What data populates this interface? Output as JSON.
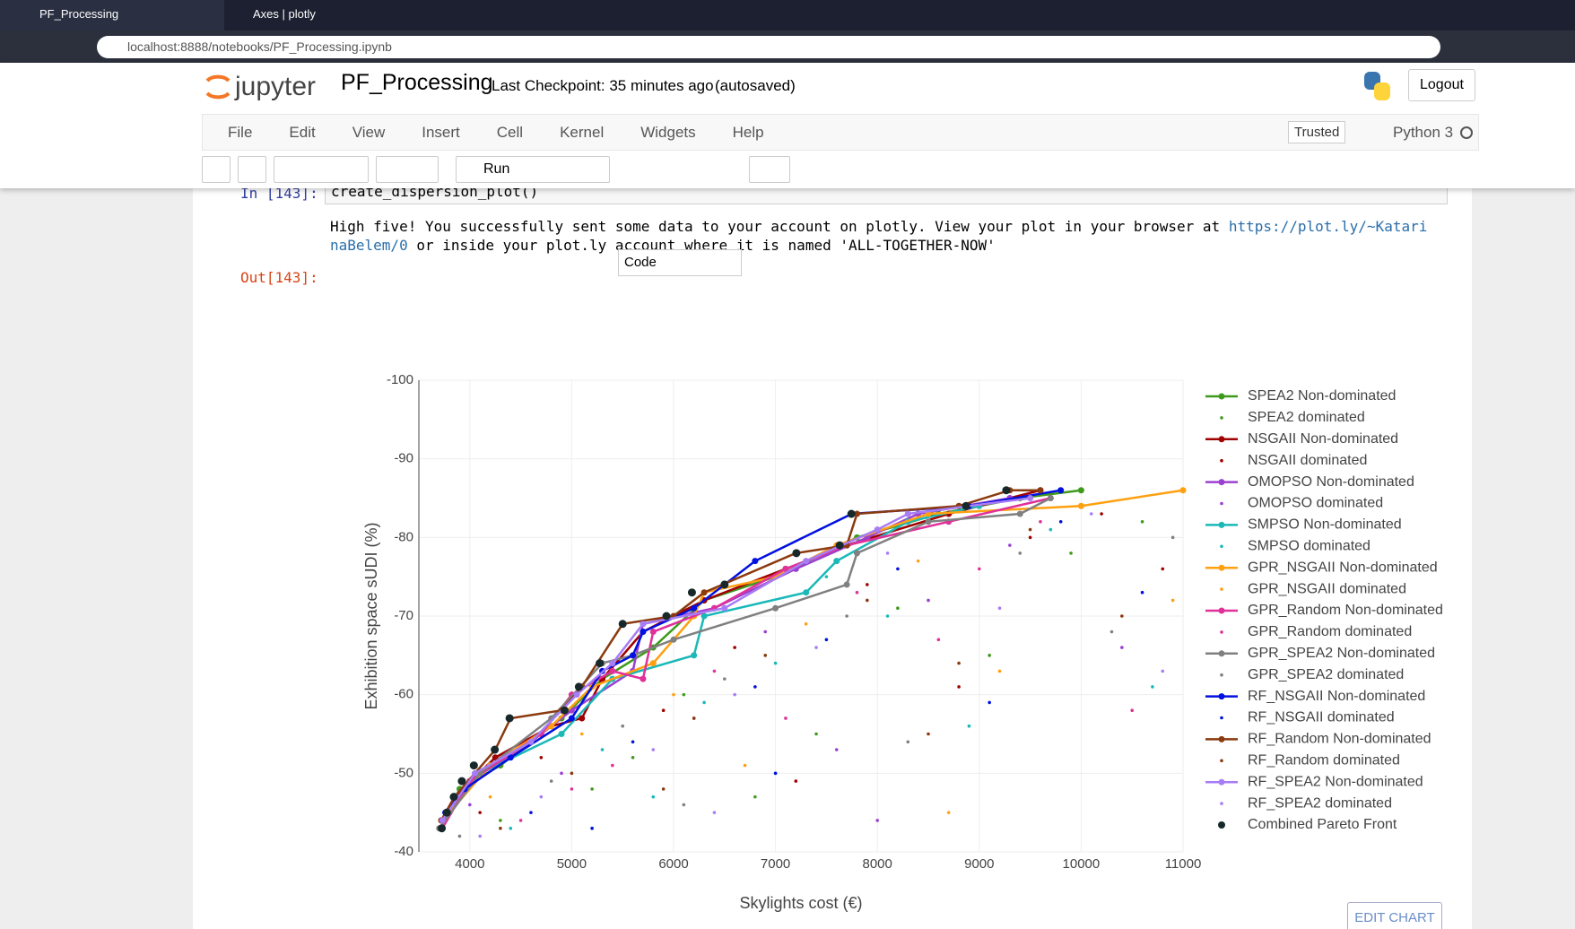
{
  "browser": {
    "tabs": [
      "PF_Processing",
      "Axes | plotly"
    ],
    "url": "localhost:8888/notebooks/PF_Processing.ipynb"
  },
  "header": {
    "logo": "jupyter",
    "notebook": "PF_Processing",
    "checkpoint": "Last Checkpoint: 35 minutes ago",
    "autosave": "(autosaved)",
    "logout": "Logout"
  },
  "menu": [
    "File",
    "Edit",
    "View",
    "Insert",
    "Cell",
    "Kernel",
    "Widgets",
    "Help"
  ],
  "trusted": "Trusted",
  "kernel": "Python 3",
  "toolbar": {
    "run": "Run",
    "cell_type": "Code"
  },
  "cell": {
    "in_prompt": "In [143]:",
    "code": "create_dispersion_plot()",
    "output_start": "High five! You successfully sent some data to your account on plotly. View your plot in your browser at ",
    "output_link": "https://plot.ly/~KatarinaBelem/0",
    "output_end": " or inside your plot.ly account where it is named 'ALL-TOGETHER-NOW'",
    "out_prompt": "Out[143]:"
  },
  "edit_chart": "EDIT CHART",
  "chart_data": {
    "type": "scatter",
    "x_label": "Skylights cost (€)",
    "y_label": "Exhibition space sUDI (%)",
    "xlim": [
      3500,
      11000
    ],
    "xticks": [
      4000,
      5000,
      6000,
      7000,
      8000,
      9000,
      10000,
      11000
    ],
    "ylim": [
      -40,
      -100
    ],
    "yticks": [
      -100,
      -90,
      -80,
      -70,
      -60,
      -50,
      -40
    ],
    "grid": true,
    "legend": "right",
    "series": [
      {
        "name": "SPEA2 Non-dominated",
        "color": "#3f9a1c",
        "mode": "lines+markers",
        "x": [
          3750,
          3900,
          4300,
          4900,
          5300,
          5800,
          6300,
          7000,
          7800,
          8600,
          9400,
          10000
        ],
        "values": [
          -44,
          -48,
          -51,
          -57,
          -62,
          -66,
          -72,
          -75,
          -80,
          -83,
          -85,
          -86
        ]
      },
      {
        "name": "SPEA2 dominated",
        "color": "#3f9a1c",
        "mode": "markers",
        "x": [
          4300,
          5200,
          6100,
          7400,
          8200,
          9100,
          9900,
          10600,
          6800,
          5600
        ],
        "values": [
          -44,
          -48,
          -60,
          -55,
          -71,
          -65,
          -78,
          -82,
          -47,
          -52
        ]
      },
      {
        "name": "NSGAII Non-dominated",
        "color": "#a00000",
        "mode": "lines+markers",
        "x": [
          3720,
          3850,
          4250,
          4800,
          5100,
          5300,
          5700,
          6300,
          7100,
          7700,
          8700,
          9600
        ],
        "values": [
          -44,
          -47,
          -52,
          -56,
          -57,
          -62,
          -68,
          -72,
          -76,
          -79,
          -83,
          -86
        ]
      },
      {
        "name": "NSGAII dominated",
        "color": "#a00000",
        "mode": "markers",
        "x": [
          4100,
          4700,
          5900,
          6600,
          7900,
          8800,
          9500,
          10800,
          7200,
          10200
        ],
        "values": [
          -45,
          -52,
          -58,
          -66,
          -74,
          -61,
          -80,
          -76,
          -49,
          -83
        ]
      },
      {
        "name": "OMOPSO Non-dominated",
        "color": "#9a40d0",
        "mode": "lines+markers",
        "x": [
          3740,
          4000,
          4600,
          5000,
          5600,
          5700,
          6400,
          7200,
          7900,
          8400,
          9300
        ],
        "values": [
          -44,
          -49,
          -54,
          -58,
          -63,
          -69,
          -71,
          -76,
          -80,
          -83,
          -85
        ]
      },
      {
        "name": "OMOPSO dominated",
        "color": "#9a40d0",
        "mode": "markers",
        "x": [
          4000,
          4900,
          5700,
          6900,
          7600,
          8500,
          9300,
          10400,
          6200,
          8000
        ],
        "values": [
          -46,
          -50,
          -62,
          -68,
          -53,
          -72,
          -79,
          -66,
          -57,
          -44
        ]
      },
      {
        "name": "SMPSO Non-dominated",
        "color": "#1bb8b8",
        "mode": "lines+markers",
        "x": [
          3780,
          4100,
          4900,
          5400,
          6200,
          6300,
          7300,
          7600,
          8300,
          9000
        ],
        "values": [
          -45,
          -50,
          -55,
          -62,
          -65,
          -70,
          -73,
          -77,
          -82,
          -84
        ]
      },
      {
        "name": "SMPSO dominated",
        "color": "#1bb8b8",
        "mode": "markers",
        "x": [
          4400,
          5300,
          6300,
          7000,
          8100,
          8900,
          9700,
          5800,
          7500,
          10700
        ],
        "values": [
          -43,
          -53,
          -59,
          -64,
          -70,
          -56,
          -81,
          -47,
          -75,
          -61
        ]
      },
      {
        "name": "GPR_NSGAII Non-dominated",
        "color": "#ffa010",
        "mode": "lines+markers",
        "x": [
          3800,
          4200,
          4800,
          5200,
          5800,
          6200,
          6300,
          7000,
          7600,
          8500,
          10000,
          11000
        ],
        "values": [
          -45,
          -51,
          -56,
          -61,
          -64,
          -70,
          -73,
          -75,
          -79,
          -83,
          -84,
          -86
        ]
      },
      {
        "name": "GPR_NSGAII dominated",
        "color": "#ffa010",
        "mode": "markers",
        "x": [
          4200,
          5100,
          6000,
          7300,
          8400,
          9200,
          10000,
          10900,
          6700,
          8700
        ],
        "values": [
          -47,
          -55,
          -60,
          -69,
          -77,
          -63,
          -84,
          -72,
          -51,
          -45
        ]
      },
      {
        "name": "GPR_Random Non-dominated",
        "color": "#e0309a",
        "mode": "lines+markers",
        "x": [
          3730,
          4000,
          4700,
          5000,
          5400,
          5700,
          5800,
          6400,
          7100,
          7700,
          8700,
          9700
        ],
        "values": [
          -43,
          -49,
          -55,
          -60,
          -63,
          -62,
          -68,
          -71,
          -76,
          -79,
          -82,
          -85
        ]
      },
      {
        "name": "GPR_Random dominated",
        "color": "#e0309a",
        "mode": "markers",
        "x": [
          4500,
          5400,
          6400,
          7100,
          7800,
          8600,
          9600,
          10500,
          5000,
          9000
        ],
        "values": [
          -44,
          -51,
          -63,
          -57,
          -73,
          -67,
          -82,
          -58,
          -48,
          -76
        ]
      },
      {
        "name": "GPR_SPEA2 Non-dominated",
        "color": "#808080",
        "mode": "lines+markers",
        "x": [
          3700,
          4100,
          4800,
          5300,
          5600,
          6000,
          7000,
          7700,
          7800,
          8500,
          9400,
          9700
        ],
        "values": [
          -43,
          -50,
          -57,
          -64,
          -65,
          -67,
          -71,
          -74,
          -78,
          -82,
          -83,
          -85
        ]
      },
      {
        "name": "GPR_SPEA2 dominated",
        "color": "#808080",
        "mode": "markers",
        "x": [
          3900,
          4800,
          5500,
          6500,
          7700,
          8300,
          9400,
          10300,
          6100,
          10900
        ],
        "values": [
          -42,
          -49,
          -56,
          -62,
          -70,
          -54,
          -78,
          -68,
          -46,
          -80
        ]
      },
      {
        "name": "RF_NSGAII Non-dominated",
        "color": "#0010e0",
        "mode": "lines+markers",
        "x": [
          3760,
          3950,
          4400,
          5000,
          5300,
          5600,
          5700,
          6200,
          6500,
          6800,
          7750,
          8900,
          9800
        ],
        "values": [
          -45,
          -48,
          -52,
          -57,
          -63,
          -65,
          -68,
          -71,
          -74,
          -77,
          -83,
          -84,
          -86
        ]
      },
      {
        "name": "RF_NSGAII dominated",
        "color": "#0010e0",
        "mode": "markers",
        "x": [
          4600,
          5600,
          6800,
          7500,
          8200,
          9100,
          9800,
          10600,
          5200,
          7000
        ],
        "values": [
          -45,
          -54,
          -61,
          -67,
          -76,
          -59,
          -82,
          -73,
          -43,
          -50
        ]
      },
      {
        "name": "RF_Random Non-dominated",
        "color": "#8b3a0f",
        "mode": "lines+markers",
        "x": [
          3720,
          3850,
          4250,
          4400,
          4900,
          5100,
          5500,
          6000,
          6300,
          7200,
          7700,
          7800,
          8800,
          9300,
          9600
        ],
        "values": [
          -44,
          -47,
          -53,
          -57,
          -58,
          -61,
          -69,
          -70,
          -73,
          -78,
          -79,
          -83,
          -84,
          -86,
          -86
        ]
      },
      {
        "name": "RF_Random dominated",
        "color": "#8b3a0f",
        "mode": "markers",
        "x": [
          4300,
          5000,
          6200,
          6900,
          7900,
          8800,
          9500,
          10400,
          5900,
          8500
        ],
        "values": [
          -43,
          -50,
          -57,
          -65,
          -72,
          -64,
          -81,
          -70,
          -48,
          -55
        ]
      },
      {
        "name": "RF_SPEA2 Non-dominated",
        "color": "#a77cf5",
        "mode": "lines+markers",
        "x": [
          3730,
          4050,
          4600,
          5050,
          5400,
          5700,
          6500,
          7300,
          8000,
          8300,
          9500
        ],
        "values": [
          -44,
          -50,
          -54,
          -60,
          -64,
          -69,
          -71,
          -77,
          -81,
          -83,
          -85
        ]
      },
      {
        "name": "RF_SPEA2 dominated",
        "color": "#a77cf5",
        "mode": "markers",
        "x": [
          4100,
          4700,
          5800,
          6600,
          7400,
          8100,
          9200,
          10100,
          6400,
          10800
        ],
        "values": [
          -42,
          -47,
          -53,
          -60,
          -66,
          -78,
          -71,
          -83,
          -45,
          -63
        ]
      },
      {
        "name": "Combined Pareto Front",
        "color": "#17282a",
        "mode": "markers",
        "x": [
          3725,
          3775,
          3843,
          3922,
          4040,
          4245,
          4390,
          4930,
          5070,
          5275,
          5500,
          5930,
          6180,
          6500,
          7205,
          7630,
          7745,
          8870,
          9265
        ],
        "values": [
          -43,
          -45,
          -47,
          -49,
          -51,
          -53,
          -57,
          -58,
          -61,
          -64,
          -69,
          -70,
          -73,
          -74,
          -78,
          -79,
          -83,
          -84,
          -86
        ]
      }
    ]
  }
}
